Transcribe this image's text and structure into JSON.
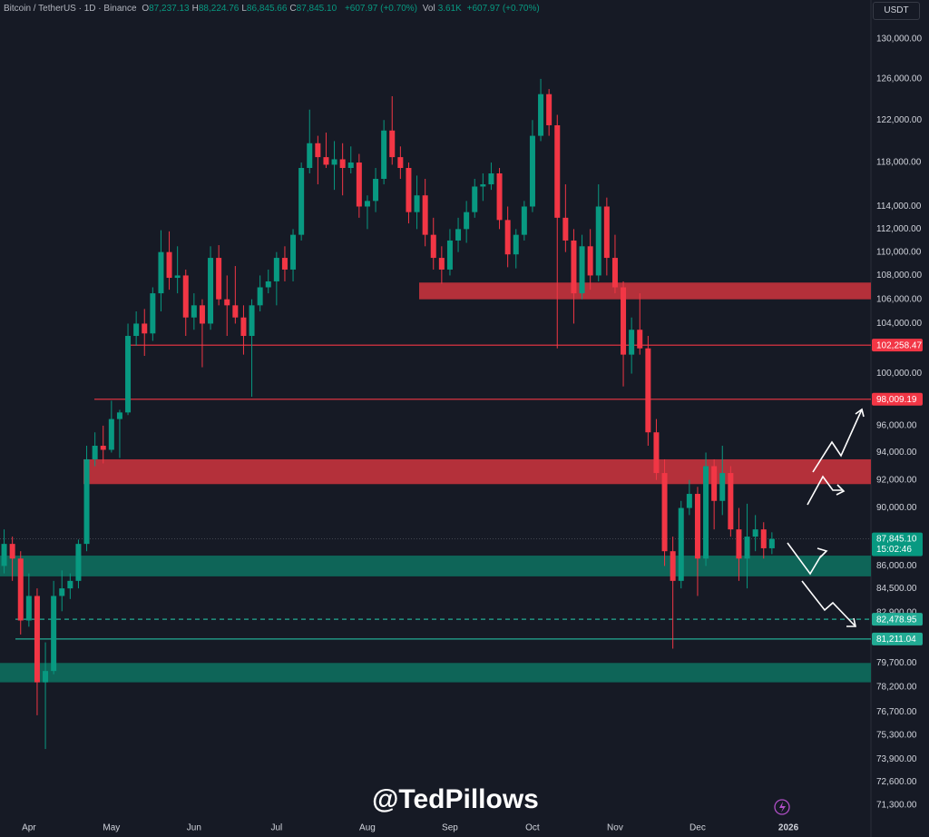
{
  "chart_data": {
    "type": "candlestick",
    "symbol": "Bitcoin / TetherUS · 1D · Binance",
    "ohlc_header": [
      {
        "label": "O",
        "value": "87,237.13"
      },
      {
        "label": "H",
        "value": "88,224.76"
      },
      {
        "label": "L",
        "value": "86,845.66"
      },
      {
        "label": "C",
        "value": "87,845.10"
      }
    ],
    "change": "+607.97 (+0.70%)",
    "volume_label": "Vol",
    "volume": "3.61K",
    "volume_change": "+607.97 (+0.70%)",
    "currency": "USDT",
    "watermark": "@TedPillows",
    "log_scale": true,
    "up_color": "#089981",
    "down_color": "#f23645",
    "ylim": [
      70530,
      134040
    ],
    "yticks": [
      {
        "value": 130000,
        "label": "130,000.00"
      },
      {
        "value": 126000,
        "label": "126,000.00"
      },
      {
        "value": 122000,
        "label": "122,000.00"
      },
      {
        "value": 118000,
        "label": "118,000.00"
      },
      {
        "value": 114000,
        "label": "114,000.00"
      },
      {
        "value": 112000,
        "label": "112,000.00"
      },
      {
        "value": 110000,
        "label": "110,000.00"
      },
      {
        "value": 108000,
        "label": "108,000.00"
      },
      {
        "value": 106000,
        "label": "106,000.00"
      },
      {
        "value": 104000,
        "label": "104,000.00"
      },
      {
        "value": 100000,
        "label": "100,000.00"
      },
      {
        "value": 96000,
        "label": "96,000.00"
      },
      {
        "value": 94000,
        "label": "94,000.00"
      },
      {
        "value": 92000,
        "label": "92,000.00"
      },
      {
        "value": 90000,
        "label": "90,000.00"
      },
      {
        "value": 86000,
        "label": "86,000.00"
      },
      {
        "value": 84500,
        "label": "84,500.00"
      },
      {
        "value": 82900,
        "label": "82,900.00"
      },
      {
        "value": 79700,
        "label": "79,700.00"
      },
      {
        "value": 78200,
        "label": "78,200.00"
      },
      {
        "value": 76700,
        "label": "76,700.00"
      },
      {
        "value": 75300,
        "label": "75,300.00"
      },
      {
        "value": 73900,
        "label": "73,900.00"
      },
      {
        "value": 72600,
        "label": "72,600.00"
      },
      {
        "value": 71300,
        "label": "71,300.00"
      }
    ],
    "categories": [
      null,
      null,
      null,
      "Apr",
      null,
      null,
      null,
      null,
      null,
      null,
      null,
      null,
      null,
      "May",
      null,
      null,
      null,
      null,
      null,
      null,
      null,
      null,
      null,
      "Jun",
      null,
      null,
      null,
      null,
      null,
      null,
      null,
      null,
      null,
      "Jul",
      null,
      null,
      null,
      null,
      null,
      null,
      null,
      null,
      null,
      null,
      "Aug",
      null,
      null,
      null,
      null,
      null,
      null,
      null,
      null,
      null,
      "Sep",
      null,
      null,
      null,
      null,
      null,
      null,
      null,
      null,
      null,
      "Oct",
      null,
      null,
      null,
      null,
      null,
      null,
      null,
      null,
      null,
      "Nov",
      null,
      null,
      null,
      null,
      null,
      null,
      null,
      null,
      null,
      "Dec",
      null,
      null,
      null,
      null,
      null,
      null,
      null,
      null,
      null,
      null,
      "2026"
    ],
    "values": [
      [
        86000,
        88500,
        85500,
        87500
      ],
      [
        87500,
        88000,
        85000,
        86500
      ],
      [
        86500,
        87000,
        81500,
        82400
      ],
      [
        82400,
        85500,
        82000,
        84000
      ],
      [
        84000,
        84500,
        76500,
        78500
      ],
      [
        78500,
        81000,
        74500,
        79200
      ],
      [
        79200,
        85000,
        79000,
        84000
      ],
      [
        84000,
        85700,
        83000,
        84500
      ],
      [
        84500,
        85500,
        83800,
        85000
      ],
      [
        85000,
        87800,
        84500,
        87500
      ],
      [
        87500,
        94500,
        87000,
        93500
      ],
      [
        93500,
        95500,
        93000,
        94500
      ],
      [
        94500,
        96000,
        93200,
        94200
      ],
      [
        94200,
        97900,
        94000,
        96500
      ],
      [
        96500,
        97200,
        93600,
        97000
      ],
      [
        97000,
        104000,
        96800,
        103000
      ],
      [
        103000,
        105000,
        102200,
        104000
      ],
      [
        104000,
        105200,
        101400,
        103200
      ],
      [
        103200,
        107000,
        102600,
        106500
      ],
      [
        106500,
        111900,
        105000,
        110000
      ],
      [
        110000,
        111800,
        106800,
        107800
      ],
      [
        107800,
        110500,
        106500,
        108000
      ],
      [
        108000,
        108500,
        103000,
        104500
      ],
      [
        104500,
        106500,
        103500,
        105500
      ],
      [
        105500,
        106000,
        100500,
        104000
      ],
      [
        104000,
        110500,
        103500,
        109500
      ],
      [
        109500,
        110600,
        105500,
        106000
      ],
      [
        106000,
        108000,
        103000,
        105500
      ],
      [
        105500,
        108800,
        104000,
        104500
      ],
      [
        104500,
        105500,
        101500,
        103000
      ],
      [
        103000,
        106000,
        98200,
        105500
      ],
      [
        105500,
        108000,
        105000,
        107000
      ],
      [
        107000,
        108500,
        106500,
        107500
      ],
      [
        107500,
        110000,
        105500,
        109500
      ],
      [
        109500,
        110500,
        107500,
        108500
      ],
      [
        108500,
        112000,
        107500,
        111500
      ],
      [
        111500,
        118000,
        111000,
        117500
      ],
      [
        117500,
        123000,
        117000,
        119800
      ],
      [
        119800,
        120500,
        116000,
        118500
      ],
      [
        118500,
        120800,
        117500,
        117800
      ],
      [
        117800,
        120000,
        115500,
        118300
      ],
      [
        118300,
        119800,
        115000,
        117500
      ],
      [
        117500,
        119500,
        117000,
        118000
      ],
      [
        118000,
        118800,
        113000,
        114000
      ],
      [
        114000,
        115000,
        112000,
        114500
      ],
      [
        114500,
        117500,
        113500,
        116500
      ],
      [
        116500,
        122000,
        116000,
        121000
      ],
      [
        121000,
        124300,
        117800,
        118500
      ],
      [
        118500,
        119500,
        116500,
        117500
      ],
      [
        117500,
        118000,
        112500,
        113500
      ],
      [
        113500,
        116800,
        112000,
        115000
      ],
      [
        115000,
        116500,
        110500,
        111500
      ],
      [
        111500,
        113000,
        108500,
        109500
      ],
      [
        109500,
        110500,
        107300,
        108500
      ],
      [
        108500,
        112000,
        108000,
        111000
      ],
      [
        111000,
        113000,
        110000,
        112000
      ],
      [
        112000,
        114500,
        110800,
        113500
      ],
      [
        113500,
        116500,
        113000,
        115800
      ],
      [
        115800,
        117000,
        114500,
        116000
      ],
      [
        116000,
        118000,
        115500,
        117000
      ],
      [
        117000,
        117500,
        112000,
        112800
      ],
      [
        112800,
        114000,
        108700,
        109800
      ],
      [
        109800,
        112000,
        108600,
        111500
      ],
      [
        111500,
        114500,
        111000,
        114000
      ],
      [
        114000,
        122000,
        113500,
        120500
      ],
      [
        120500,
        126000,
        120000,
        124500
      ],
      [
        124500,
        125000,
        120500,
        121500
      ],
      [
        121500,
        122500,
        102000,
        113000
      ],
      [
        113000,
        116000,
        110000,
        111000
      ],
      [
        111000,
        112000,
        104000,
        106500
      ],
      [
        106500,
        111500,
        106000,
        110500
      ],
      [
        110500,
        112000,
        106800,
        108000
      ],
      [
        108000,
        116000,
        107500,
        114000
      ],
      [
        114000,
        114800,
        108000,
        109500
      ],
      [
        109500,
        111500,
        106500,
        107000
      ],
      [
        107000,
        107500,
        99000,
        101500
      ],
      [
        101500,
        104500,
        100000,
        103500
      ],
      [
        103500,
        106500,
        101500,
        102000
      ],
      [
        102000,
        103000,
        94500,
        95500
      ],
      [
        95500,
        96500,
        92000,
        92500
      ],
      [
        92500,
        93500,
        86000,
        87000
      ],
      [
        87000,
        88000,
        80600,
        85000
      ],
      [
        85000,
        90500,
        84500,
        90000
      ],
      [
        90000,
        92000,
        89500,
        91000
      ],
      [
        91000,
        91500,
        84000,
        86500
      ],
      [
        86500,
        94000,
        86000,
        93000
      ],
      [
        93000,
        93500,
        88500,
        90500
      ],
      [
        90500,
        94500,
        89500,
        92500
      ],
      [
        92500,
        93000,
        88000,
        88500
      ],
      [
        88500,
        90000,
        85000,
        86500
      ],
      [
        86500,
        90300,
        84500,
        88000
      ],
      [
        88000,
        89500,
        87000,
        88500
      ],
      [
        88500,
        89000,
        86500,
        87200
      ],
      [
        87200,
        88300,
        86800,
        87845.1
      ],
      null,
      null
    ],
    "zones": [
      {
        "from": 106000,
        "to": 107400,
        "color": "#c2323c"
      },
      {
        "from": 91700,
        "to": 93500,
        "color": "#c2323c"
      },
      {
        "from": 85300,
        "to": 86700,
        "color": "#0e6b5c"
      },
      {
        "from": 78500,
        "to": 79700,
        "color": "#0e6b5c"
      }
    ],
    "price_lines": [
      {
        "value": 102258.47,
        "label": "102,258.47",
        "color": "#f23645",
        "dashed": false
      },
      {
        "value": 98009.19,
        "label": "98,009.19",
        "color": "#f23645",
        "dashed": false
      },
      {
        "value": 82478.95,
        "label": "82,478.95",
        "color": "#22ab94",
        "dashed": true
      },
      {
        "value": 81211.04,
        "label": "81,211.04",
        "color": "#22ab94",
        "dashed": false
      }
    ],
    "last_price": {
      "value": 87845.1,
      "label": "87,845.10",
      "countdown": "15:02:46",
      "color": "#089981"
    }
  }
}
